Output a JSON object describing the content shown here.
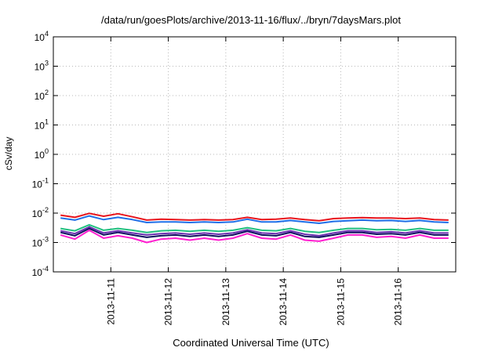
{
  "chart_data": {
    "type": "line",
    "title": "/data/run/goesPlots/archive/2013-11-16/flux/../bryn/7daysMars.plot",
    "xlabel": "Coordinated Universal Time (UTC)",
    "ylabel": "cSv/day",
    "y_scale": "log",
    "ylim": [
      0.0001,
      10000
    ],
    "xlim": [
      "2013-11-10 00:00",
      "2013-11-17 00:00"
    ],
    "y_ticks": [
      {
        "base": "10",
        "exp": "-4"
      },
      {
        "base": "10",
        "exp": "-3"
      },
      {
        "base": "10",
        "exp": "-2"
      },
      {
        "base": "10",
        "exp": "-1"
      },
      {
        "base": "10",
        "exp": "0"
      },
      {
        "base": "10",
        "exp": "1"
      },
      {
        "base": "10",
        "exp": "2"
      },
      {
        "base": "10",
        "exp": "3"
      },
      {
        "base": "10",
        "exp": "4"
      }
    ],
    "x_ticks": [
      "2013-11-11",
      "2013-11-12",
      "2013-11-13",
      "2013-11-14",
      "2013-11-15",
      "2013-11-16"
    ],
    "grid": true,
    "legend": "none",
    "x_points": [
      "2013-11-10 03:00",
      "2013-11-10 09:00",
      "2013-11-10 15:00",
      "2013-11-10 21:00",
      "2013-11-11 03:00",
      "2013-11-11 09:00",
      "2013-11-11 15:00",
      "2013-11-11 21:00",
      "2013-11-12 03:00",
      "2013-11-12 09:00",
      "2013-11-12 15:00",
      "2013-11-12 21:00",
      "2013-11-13 03:00",
      "2013-11-13 09:00",
      "2013-11-13 15:00",
      "2013-11-13 21:00",
      "2013-11-14 03:00",
      "2013-11-14 09:00",
      "2013-11-14 15:00",
      "2013-11-14 21:00",
      "2013-11-15 03:00",
      "2013-11-15 09:00",
      "2013-11-15 15:00",
      "2013-11-15 21:00",
      "2013-11-16 03:00",
      "2013-11-16 09:00",
      "2013-11-16 15:00",
      "2013-11-16 21:00"
    ],
    "series": [
      {
        "color": "#e8141c",
        "values": [
          0.0085,
          0.0072,
          0.0098,
          0.0078,
          0.0095,
          0.0075,
          0.0058,
          0.0062,
          0.006,
          0.0058,
          0.006,
          0.0058,
          0.006,
          0.0072,
          0.006,
          0.0062,
          0.0068,
          0.006,
          0.0055,
          0.0065,
          0.0068,
          0.007,
          0.0068,
          0.0068,
          0.0065,
          0.0068,
          0.006,
          0.0058
        ]
      },
      {
        "color": "#1f6fe8",
        "values": [
          0.0068,
          0.0058,
          0.008,
          0.006,
          0.0072,
          0.006,
          0.0048,
          0.005,
          0.005,
          0.0048,
          0.005,
          0.0048,
          0.005,
          0.0062,
          0.005,
          0.005,
          0.0056,
          0.005,
          0.0045,
          0.0052,
          0.0055,
          0.0058,
          0.0055,
          0.0056,
          0.0052,
          0.0056,
          0.005,
          0.0048
        ]
      },
      {
        "color": "#22c080",
        "values": [
          0.003,
          0.0025,
          0.004,
          0.0026,
          0.003,
          0.0026,
          0.0022,
          0.0025,
          0.0026,
          0.0024,
          0.0026,
          0.0024,
          0.0026,
          0.0032,
          0.0026,
          0.0025,
          0.003,
          0.0024,
          0.0022,
          0.0026,
          0.003,
          0.003,
          0.0027,
          0.0028,
          0.0026,
          0.003,
          0.0026,
          0.0026
        ]
      },
      {
        "color": "#6a2fb0",
        "values": [
          0.0025,
          0.002,
          0.0034,
          0.0021,
          0.0025,
          0.0021,
          0.0018,
          0.002,
          0.0021,
          0.0019,
          0.0021,
          0.0019,
          0.0021,
          0.0027,
          0.0021,
          0.002,
          0.0025,
          0.0019,
          0.0017,
          0.0021,
          0.0025,
          0.0025,
          0.0022,
          0.0023,
          0.0021,
          0.0025,
          0.0021,
          0.0021
        ]
      },
      {
        "color": "#101060",
        "values": [
          0.0022,
          0.0017,
          0.003,
          0.0018,
          0.0022,
          0.0018,
          0.0015,
          0.0017,
          0.0018,
          0.0016,
          0.0018,
          0.0016,
          0.0018,
          0.0024,
          0.0018,
          0.0017,
          0.0022,
          0.0016,
          0.0015,
          0.0018,
          0.0022,
          0.0022,
          0.0019,
          0.002,
          0.0018,
          0.0022,
          0.0018,
          0.0018
        ]
      },
      {
        "color": "#ff1fd0",
        "values": [
          0.0018,
          0.0013,
          0.0026,
          0.0014,
          0.0017,
          0.0014,
          0.001,
          0.0013,
          0.0014,
          0.0012,
          0.0014,
          0.0012,
          0.0014,
          0.002,
          0.0014,
          0.0013,
          0.0018,
          0.0012,
          0.0011,
          0.0014,
          0.0018,
          0.0018,
          0.0015,
          0.0016,
          0.0014,
          0.0018,
          0.0014,
          0.0014
        ]
      }
    ]
  }
}
